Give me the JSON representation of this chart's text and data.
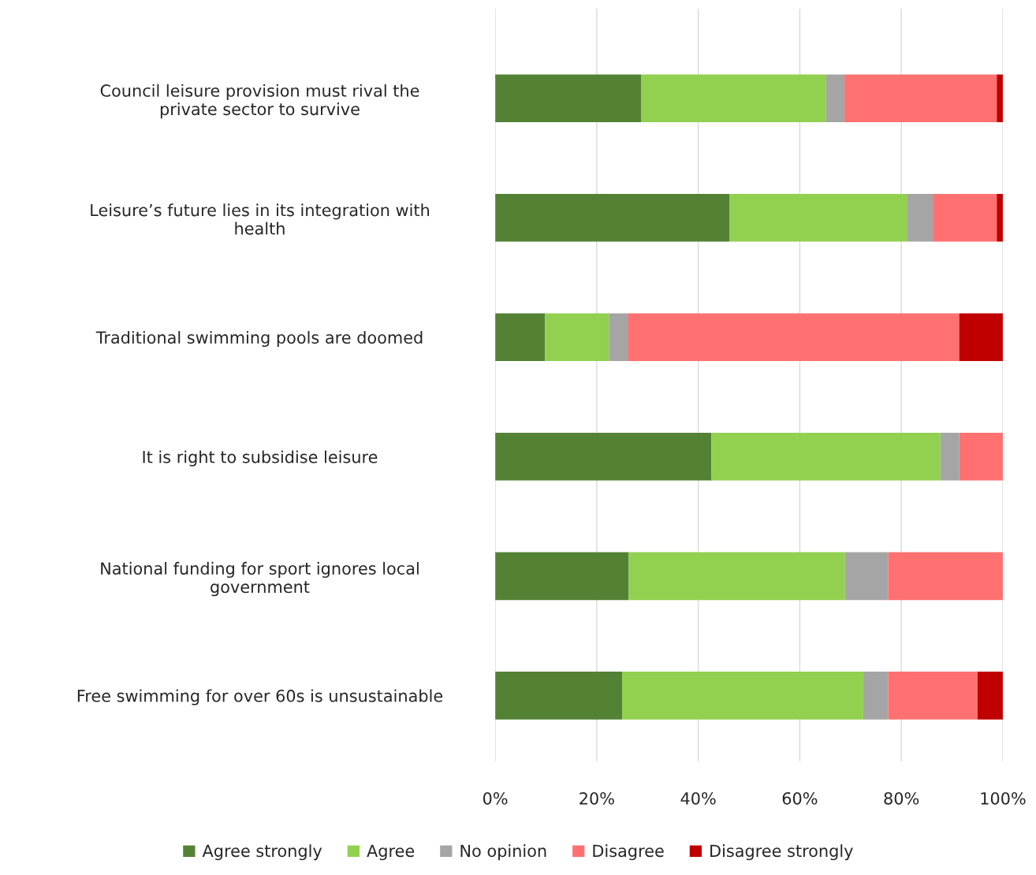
{
  "chart_data": {
    "type": "bar",
    "orientation": "horizontal",
    "stacked": true,
    "categories": [
      "Council leisure provision must rival the\nprivate sector to survive",
      "Leisure’s future lies in its integration with\nhealth",
      "Traditional swimming pools are doomed",
      "It is right to subsidise leisure",
      "National funding for sport ignores local\ngovernment",
      "Free swimming for over 60s is unsustainable"
    ],
    "series": [
      {
        "name": "Agree strongly",
        "color": "#548235",
        "values": [
          28.8,
          46.2,
          9.8,
          42.6,
          26.3,
          25.0
        ]
      },
      {
        "name": "Agree",
        "color": "#92d050",
        "values": [
          36.4,
          35.0,
          12.6,
          45.1,
          42.6,
          47.5
        ]
      },
      {
        "name": "No opinion",
        "color": "#a5a5a5",
        "values": [
          3.6,
          5.0,
          3.7,
          3.7,
          8.5,
          4.9
        ]
      },
      {
        "name": "Disagree",
        "color": "#ff7171",
        "values": [
          30.0,
          12.6,
          65.3,
          8.6,
          22.6,
          17.6
        ]
      },
      {
        "name": "Disagree strongly",
        "color": "#c00000",
        "values": [
          1.2,
          1.2,
          8.6,
          0,
          0,
          5.0
        ]
      }
    ],
    "xlim": [
      0,
      100
    ],
    "xticks": [
      {
        "value": 0,
        "label": "0%"
      },
      {
        "value": 20,
        "label": "20%"
      },
      {
        "value": 40,
        "label": "40%"
      },
      {
        "value": 60,
        "label": "60%"
      },
      {
        "value": 80,
        "label": "80%"
      },
      {
        "value": 100,
        "label": "100%"
      }
    ],
    "grid": "x",
    "legend": "bottom"
  }
}
